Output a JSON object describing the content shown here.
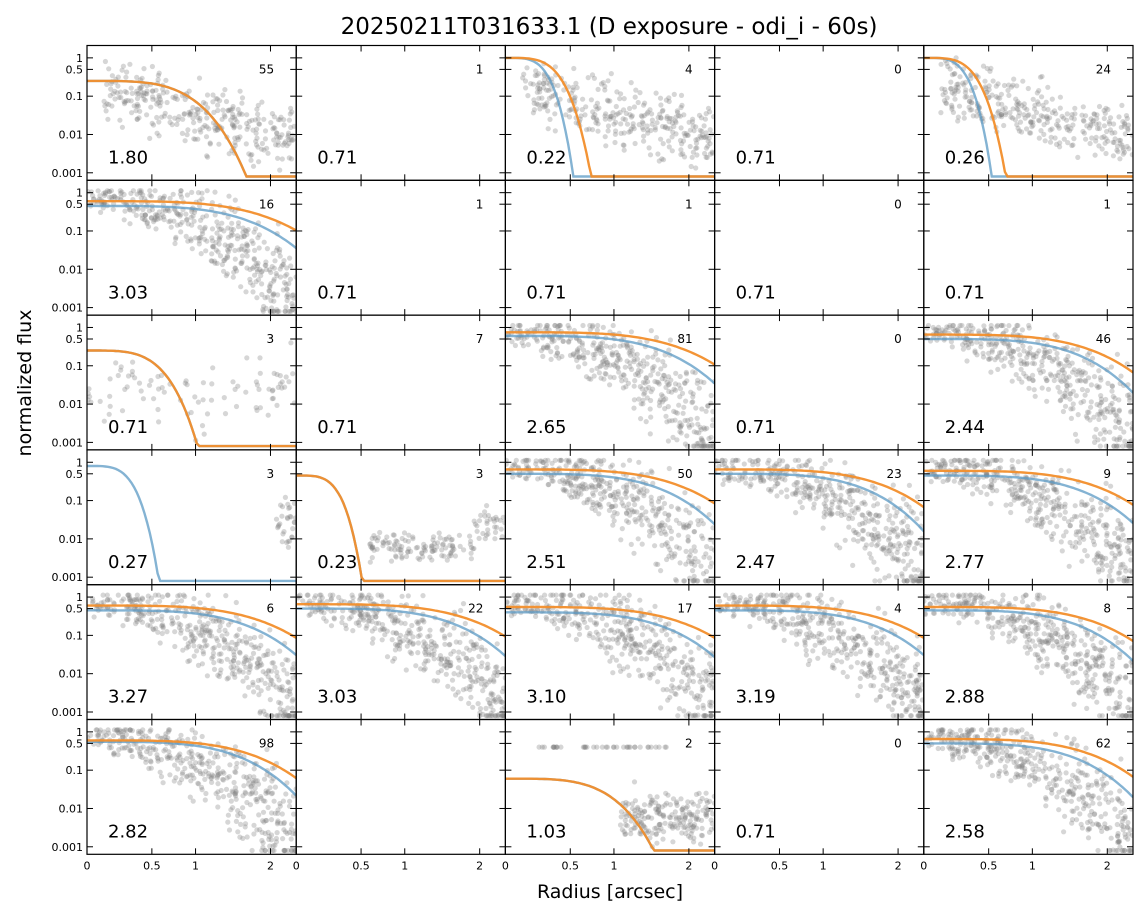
{
  "title": "20250211T031633.1 (D exposure - odi_i - 60s)",
  "xlabel": "Radius [arcsec]",
  "ylabel": "normalized flux",
  "colors": {
    "points": "#808080",
    "blue_curve": "#5b9ac4",
    "orange_curve": "#f28e2b",
    "axes": "#000000"
  },
  "chart_data": {
    "type": "scatter",
    "layout": "6 rows x 5 columns small-multiples grid",
    "x_scale": "radius (compressed, roughly square-root)",
    "y_scale": "log",
    "xlim": [
      0,
      2.6
    ],
    "ylim": [
      0.0008,
      1.3
    ],
    "x_ticks": [
      "0",
      "0.5",
      "1",
      "2"
    ],
    "y_ticks": [
      "1",
      "0.5",
      "0.1",
      "0.01",
      "0.001"
    ],
    "legend": "none",
    "panels": [
      {
        "row": 1,
        "col": 1,
        "count": "55",
        "fwhm": "1.80",
        "points": "broad",
        "blue": [
          0.25,
          1.35
        ],
        "orange": [
          0.25,
          1.35
        ]
      },
      {
        "row": 1,
        "col": 2,
        "count": "1",
        "fwhm": "0.71",
        "points": "none",
        "blue": null,
        "orange": null
      },
      {
        "row": 1,
        "col": 3,
        "count": "4",
        "fwhm": "0.22",
        "points": "broad",
        "blue": [
          1.0,
          0.22
        ],
        "orange": [
          1.0,
          0.35
        ]
      },
      {
        "row": 1,
        "col": 4,
        "count": "0",
        "fwhm": "0.71",
        "points": "none",
        "blue": null,
        "orange": null
      },
      {
        "row": 1,
        "col": 5,
        "count": "24",
        "fwhm": "0.26",
        "points": "broad",
        "blue": [
          1.0,
          0.22
        ],
        "orange": [
          1.0,
          0.32
        ]
      },
      {
        "row": 2,
        "col": 1,
        "count": "16",
        "fwhm": "3.03",
        "points": "dense",
        "blue": [
          0.45,
          3.5
        ],
        "orange": [
          0.6,
          4.2
        ]
      },
      {
        "row": 2,
        "col": 2,
        "count": "1",
        "fwhm": "0.71",
        "points": "none",
        "blue": null,
        "orange": null
      },
      {
        "row": 2,
        "col": 3,
        "count": "1",
        "fwhm": "0.71",
        "points": "none",
        "blue": null,
        "orange": null
      },
      {
        "row": 2,
        "col": 4,
        "count": "0",
        "fwhm": "0.71",
        "points": "none",
        "blue": null,
        "orange": null
      },
      {
        "row": 2,
        "col": 5,
        "count": "1",
        "fwhm": "0.71",
        "points": "none",
        "blue": null,
        "orange": null
      },
      {
        "row": 3,
        "col": 1,
        "count": "3",
        "fwhm": "0.71",
        "points": "sparse",
        "blue": [
          0.25,
          0.65
        ],
        "orange": [
          0.25,
          0.65
        ]
      },
      {
        "row": 3,
        "col": 2,
        "count": "7",
        "fwhm": "0.71",
        "points": "none",
        "blue": null,
        "orange": null
      },
      {
        "row": 3,
        "col": 3,
        "count": "81",
        "fwhm": "2.65",
        "points": "dense",
        "blue": [
          0.6,
          3.3
        ],
        "orange": [
          0.75,
          4.0
        ]
      },
      {
        "row": 3,
        "col": 4,
        "count": "0",
        "fwhm": "0.71",
        "points": "none",
        "blue": null,
        "orange": null
      },
      {
        "row": 3,
        "col": 5,
        "count": "46",
        "fwhm": "2.44",
        "points": "dense",
        "blue": [
          0.5,
          3.1
        ],
        "orange": [
          0.65,
          3.7
        ]
      },
      {
        "row": 4,
        "col": 1,
        "count": "3",
        "fwhm": "0.27",
        "points": "edge",
        "blue": [
          0.8,
          0.25
        ],
        "orange": null
      },
      {
        "row": 4,
        "col": 2,
        "count": "3",
        "fwhm": "0.23",
        "points": "band",
        "blue": [
          0.45,
          0.22
        ],
        "orange": [
          0.45,
          0.22
        ]
      },
      {
        "row": 4,
        "col": 3,
        "count": "50",
        "fwhm": "2.51",
        "points": "dense",
        "blue": [
          0.5,
          3.2
        ],
        "orange": [
          0.65,
          3.9
        ]
      },
      {
        "row": 4,
        "col": 4,
        "count": "23",
        "fwhm": "2.47",
        "points": "dense",
        "blue": [
          0.5,
          3.0
        ],
        "orange": [
          0.65,
          3.7
        ]
      },
      {
        "row": 4,
        "col": 5,
        "count": "9",
        "fwhm": "2.77",
        "points": "dense",
        "blue": [
          0.45,
          3.3
        ],
        "orange": [
          0.6,
          3.9
        ]
      },
      {
        "row": 5,
        "col": 1,
        "count": "6",
        "fwhm": "3.27",
        "points": "dense",
        "blue": [
          0.45,
          3.4
        ],
        "orange": [
          0.6,
          4.0
        ]
      },
      {
        "row": 5,
        "col": 2,
        "count": "22",
        "fwhm": "3.03",
        "points": "dense",
        "blue": [
          0.5,
          3.3
        ],
        "orange": [
          0.65,
          4.0
        ]
      },
      {
        "row": 5,
        "col": 3,
        "count": "17",
        "fwhm": "3.10",
        "points": "dense",
        "blue": [
          0.4,
          3.4
        ],
        "orange": [
          0.55,
          4.1
        ]
      },
      {
        "row": 5,
        "col": 4,
        "count": "4",
        "fwhm": "3.19",
        "points": "dense",
        "blue": [
          0.45,
          3.4
        ],
        "orange": [
          0.6,
          4.0
        ]
      },
      {
        "row": 5,
        "col": 5,
        "count": "8",
        "fwhm": "2.88",
        "points": "dense",
        "blue": [
          0.45,
          3.2
        ],
        "orange": [
          0.55,
          3.9
        ]
      },
      {
        "row": 6,
        "col": 1,
        "count": "98",
        "fwhm": "2.82",
        "points": "dense",
        "blue": [
          0.55,
          3.1
        ],
        "orange": [
          0.6,
          3.7
        ]
      },
      {
        "row": 6,
        "col": 2,
        "count": "",
        "fwhm": "",
        "points": "none",
        "blue": null,
        "orange": null
      },
      {
        "row": 6,
        "col": 3,
        "count": "2",
        "fwhm": "1.03",
        "points": "lowband",
        "blue": [
          0.06,
          1.35
        ],
        "orange": [
          0.06,
          1.35
        ]
      },
      {
        "row": 6,
        "col": 4,
        "count": "0",
        "fwhm": "0.71",
        "points": "none",
        "blue": null,
        "orange": null
      },
      {
        "row": 6,
        "col": 5,
        "count": "62",
        "fwhm": "2.58",
        "points": "dense",
        "blue": [
          0.5,
          3.1
        ],
        "orange": [
          0.65,
          3.7
        ]
      }
    ]
  }
}
